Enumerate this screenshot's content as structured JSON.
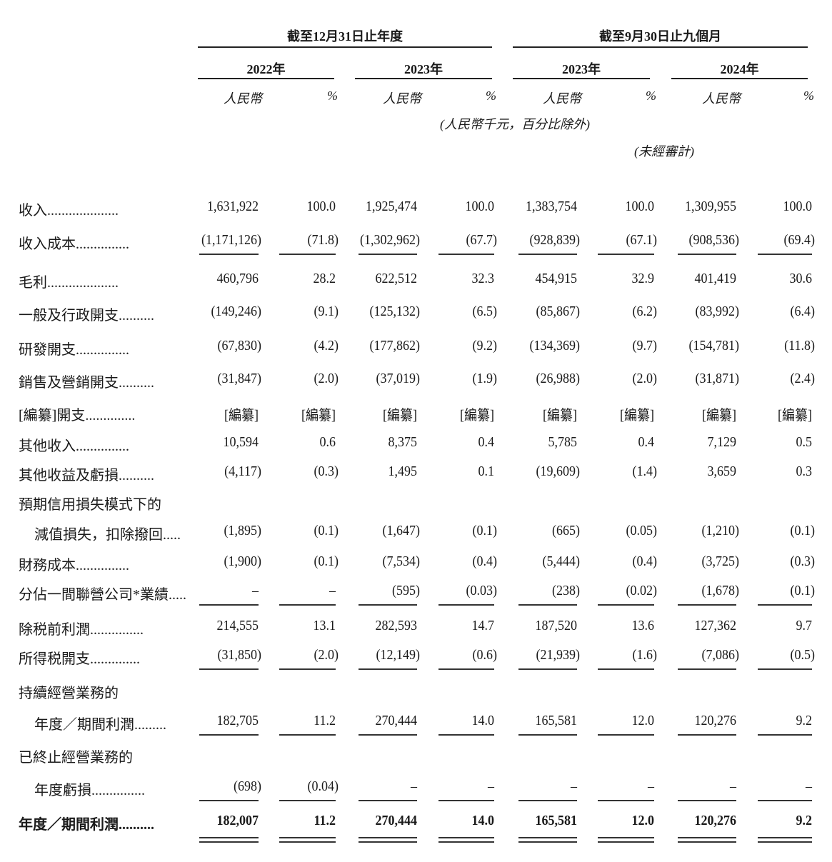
{
  "header": {
    "group_annual": "截至12月31日止年度",
    "group_nine_months": "截至9月30日止九個月",
    "years": [
      "2022年",
      "2023年",
      "2023年",
      "2024年"
    ],
    "currency_label": "人民幣",
    "percent_label": "%",
    "unit_note": "(人民幣千元，百分比除外)",
    "unaudited_note": "(未經審計)"
  },
  "rows": [
    {
      "label": "收入",
      "values": [
        "1,631,922",
        "100.0",
        "1,925,474",
        "100.0",
        "1,383,754",
        "100.0",
        "1,309,955",
        "100.0"
      ]
    },
    {
      "label": "收入成本",
      "values": [
        "(1,171,126)",
        "(71.8)",
        "(1,302,962)",
        "(67.7)",
        "(928,839)",
        "(67.1)",
        "(908,536)",
        "(69.4)"
      ]
    },
    {
      "label": "毛利",
      "values": [
        "460,796",
        "28.2",
        "622,512",
        "32.3",
        "454,915",
        "32.9",
        "401,419",
        "30.6"
      ]
    },
    {
      "label": "一般及行政開支",
      "values": [
        "(149,246)",
        "(9.1)",
        "(125,132)",
        "(6.5)",
        "(85,867)",
        "(6.2)",
        "(83,992)",
        "(6.4)"
      ]
    },
    {
      "label": "研發開支",
      "values": [
        "(67,830)",
        "(4.2)",
        "(177,862)",
        "(9.2)",
        "(134,369)",
        "(9.7)",
        "(154,781)",
        "(11.8)"
      ]
    },
    {
      "label": "銷售及營銷開支",
      "values": [
        "(31,847)",
        "(2.0)",
        "(37,019)",
        "(1.9)",
        "(26,988)",
        "(2.0)",
        "(31,871)",
        "(2.4)"
      ]
    },
    {
      "label": "[編纂]開支",
      "values": [
        "[編纂]",
        "[編纂]",
        "[編纂]",
        "[編纂]",
        "[編纂]",
        "[編纂]",
        "[編纂]",
        "[編纂]"
      ]
    },
    {
      "label": "其他收入",
      "values": [
        "10,594",
        "0.6",
        "8,375",
        "0.4",
        "5,785",
        "0.4",
        "7,129",
        "0.5"
      ]
    },
    {
      "label": "其他收益及虧損",
      "values": [
        "(4,117)",
        "(0.3)",
        "1,495",
        "0.1",
        "(19,609)",
        "(1.4)",
        "3,659",
        "0.3"
      ]
    },
    {
      "label": "預期信用損失模式下的",
      "values": []
    },
    {
      "label": "減值損失，扣除撥回",
      "values": [
        "(1,895)",
        "(0.1)",
        "(1,647)",
        "(0.1)",
        "(665)",
        "(0.05)",
        "(1,210)",
        "(0.1)"
      ]
    },
    {
      "label": "財務成本",
      "values": [
        "(1,900)",
        "(0.1)",
        "(7,534)",
        "(0.4)",
        "(5,444)",
        "(0.4)",
        "(3,725)",
        "(0.3)"
      ]
    },
    {
      "label": "分佔一間聯營公司*業績",
      "values": [
        "–",
        "–",
        "(595)",
        "(0.03)",
        "(238)",
        "(0.02)",
        "(1,678)",
        "(0.1)"
      ]
    },
    {
      "label": "除税前利潤",
      "values": [
        "214,555",
        "13.1",
        "282,593",
        "14.7",
        "187,520",
        "13.6",
        "127,362",
        "9.7"
      ]
    },
    {
      "label": "所得税開支",
      "values": [
        "(31,850)",
        "(2.0)",
        "(12,149)",
        "(0.6)",
        "(21,939)",
        "(1.6)",
        "(7,086)",
        "(0.5)"
      ]
    },
    {
      "label": "持續經營業務的",
      "values": []
    },
    {
      "label": "年度／期間利潤",
      "values": [
        "182,705",
        "11.2",
        "270,444",
        "14.0",
        "165,581",
        "12.0",
        "120,276",
        "9.2"
      ]
    },
    {
      "label": "已終止經營業務的",
      "values": []
    },
    {
      "label": "年度虧損",
      "values": [
        "(698)",
        "(0.04)",
        "–",
        "–",
        "–",
        "–",
        "–",
        "–"
      ]
    },
    {
      "label": "年度／期間利潤",
      "values": [
        "182,007",
        "11.2",
        "270,444",
        "14.0",
        "165,581",
        "12.0",
        "120,276",
        "9.2"
      ]
    }
  ]
}
